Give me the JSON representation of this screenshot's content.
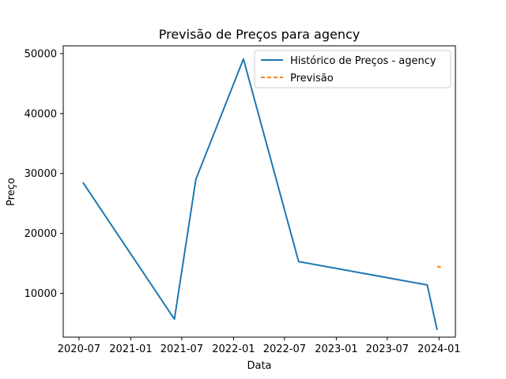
{
  "chart_data": {
    "type": "line",
    "title": "Previsão de Preços para agency",
    "xlabel": "Data",
    "ylabel": "Preço",
    "x_tick_labels": [
      "2020-07",
      "2021-01",
      "2021-07",
      "2022-01",
      "2022-07",
      "2023-01",
      "2023-07",
      "2024-01"
    ],
    "x_tick_values": [
      "2020-07-01",
      "2021-01-01",
      "2021-07-01",
      "2022-01-01",
      "2022-07-01",
      "2023-01-01",
      "2023-07-01",
      "2024-01-01"
    ],
    "y_ticks": [
      10000,
      20000,
      30000,
      40000,
      50000
    ],
    "y_tick_labels": [
      "10000",
      "20000",
      "30000",
      "40000",
      "50000"
    ],
    "xlim": [
      "2020-05-06",
      "2024-02-28"
    ],
    "ylim": [
      2700,
      51300
    ],
    "grid": false,
    "legend_position": "top-right",
    "series": [
      {
        "name": "Histórico de Preços - agency",
        "color": "#1f77b4",
        "style": "solid",
        "points": [
          {
            "x": "2020-07-15",
            "y": 28500
          },
          {
            "x": "2021-06-05",
            "y": 5700
          },
          {
            "x": "2021-08-20",
            "y": 29000
          },
          {
            "x": "2022-02-05",
            "y": 49100
          },
          {
            "x": "2022-08-20",
            "y": 15300
          },
          {
            "x": "2023-11-20",
            "y": 11400
          },
          {
            "x": "2023-12-25",
            "y": 3900
          }
        ]
      },
      {
        "name": "Previsão",
        "color": "#ff7f0e",
        "style": "dashed",
        "points": [
          {
            "x": "2023-12-25",
            "y": 14500
          },
          {
            "x": "2024-01-10",
            "y": 14300
          }
        ]
      }
    ]
  }
}
